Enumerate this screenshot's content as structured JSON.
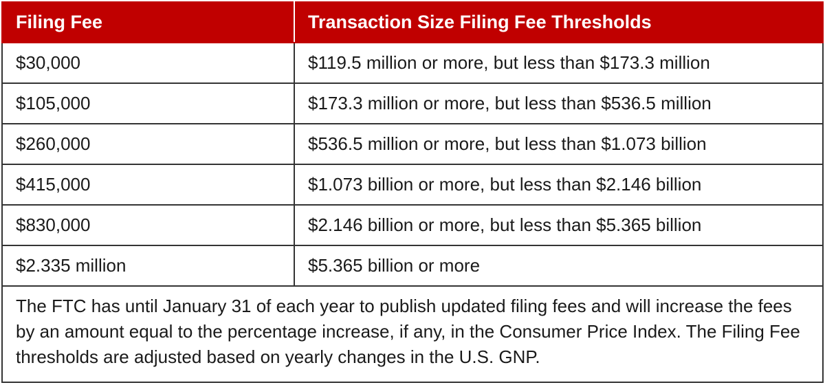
{
  "table": {
    "headers": {
      "fee": "Filing Fee",
      "threshold": "Transaction Size Filing Fee Thresholds"
    },
    "rows": [
      {
        "fee": "$30,000",
        "threshold": "$119.5 million or more, but less than $173.3 million"
      },
      {
        "fee": "$105,000",
        "threshold": "$173.3 million or more, but less than $536.5 million"
      },
      {
        "fee": "$260,000",
        "threshold": "$536.5 million or more, but less than $1.073 billion"
      },
      {
        "fee": "$415,000",
        "threshold": "$1.073 billion or more, but less than $2.146 billion"
      },
      {
        "fee": "$830,000",
        "threshold": "$2.146 billion or more, but less than $5.365 billion"
      },
      {
        "fee": "$2.335 million",
        "threshold": "$5.365 billion or more"
      }
    ],
    "note": "The FTC has until January 31 of each year to publish updated filing fees and will increase the fees by an amount equal to the percentage increase, if any, in the Consumer Price Index. The Filing Fee thresholds are adjusted based on yearly changes in the U.S. GNP."
  },
  "colors": {
    "header_background": "#c00000",
    "header_text": "#ffffff",
    "border": "#333333",
    "body_text": "#1a1a1a"
  }
}
